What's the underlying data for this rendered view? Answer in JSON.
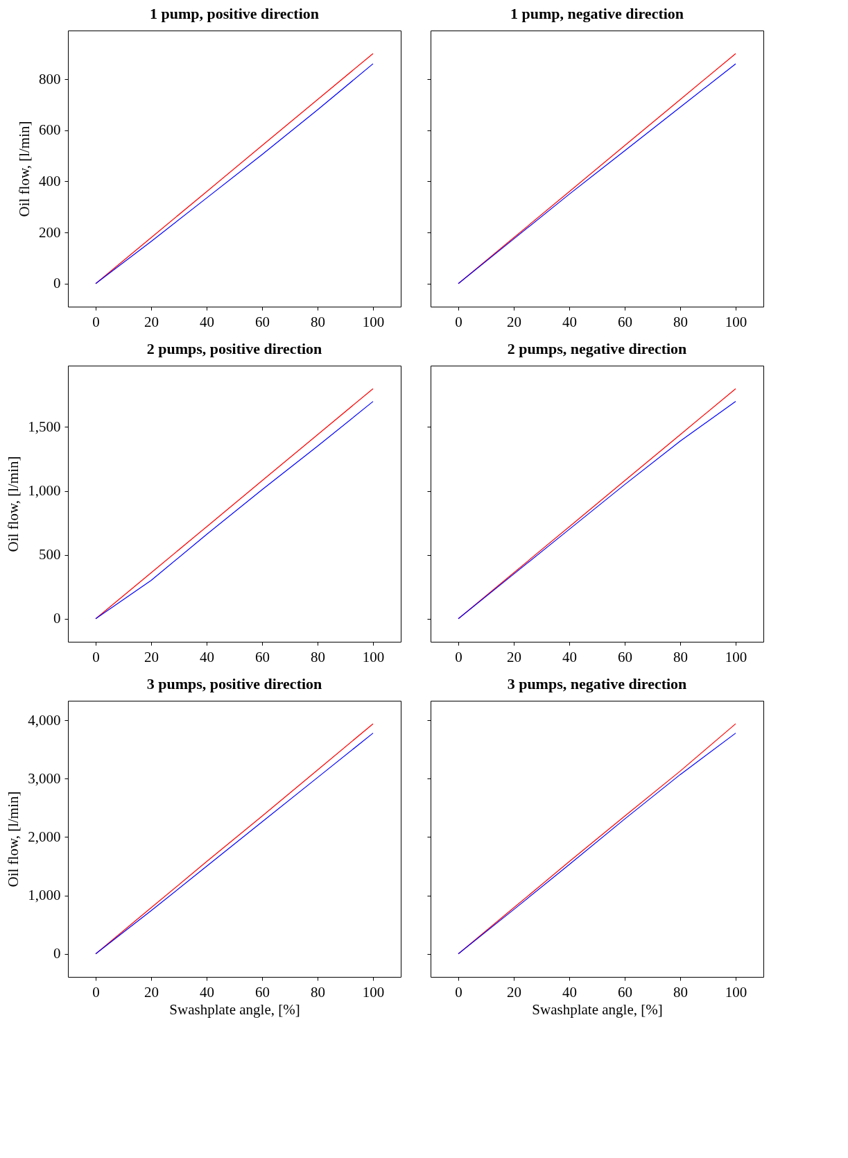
{
  "chart_data": [
    {
      "type": "line",
      "title": "1 pump, positive direction",
      "ylabel": "Oil flow, [l/min]",
      "x": [
        0,
        20,
        40,
        60,
        80,
        100
      ],
      "xlim": [
        -10,
        110
      ],
      "xticks": [
        0,
        20,
        40,
        60,
        80,
        100
      ],
      "ylim": [
        -90,
        990
      ],
      "yticks": [
        0,
        200,
        400,
        600,
        800
      ],
      "grid": false,
      "marker": "none",
      "line_style": "solid",
      "series": [
        {
          "color": "#ff0000",
          "values": [
            0,
            180,
            360,
            540,
            720,
            900
          ]
        },
        {
          "color": "#0000ff",
          "values": [
            0,
            165,
            335,
            505,
            680,
            860
          ]
        }
      ]
    },
    {
      "type": "line",
      "title": "1 pump, negative direction",
      "x": [
        0,
        20,
        40,
        60,
        80,
        100
      ],
      "xlim": [
        -10,
        110
      ],
      "xticks": [
        0,
        20,
        40,
        60,
        80,
        100
      ],
      "ylim": [
        -90,
        990
      ],
      "yticks": [
        0,
        200,
        400,
        600,
        800
      ],
      "tick_labels": "x",
      "grid": false,
      "marker": "none",
      "line_style": "solid",
      "series": [
        {
          "color": "#ff0000",
          "values": [
            0,
            180,
            360,
            540,
            720,
            900
          ]
        },
        {
          "color": "#0000ff",
          "values": [
            0,
            175,
            350,
            520,
            690,
            860
          ]
        }
      ]
    },
    {
      "type": "line",
      "title": "2 pumps, positive direction",
      "ylabel": "Oil flow, [l/min]",
      "x": [
        0,
        20,
        40,
        60,
        80,
        100
      ],
      "xlim": [
        -10,
        110
      ],
      "xticks": [
        0,
        20,
        40,
        60,
        80,
        100
      ],
      "ylim": [
        -180,
        1980
      ],
      "yticks": [
        0,
        500,
        {
          "value": 1000,
          "label": "1,000"
        },
        {
          "value": 1500,
          "label": "1,500"
        }
      ],
      "grid": false,
      "marker": "none",
      "line_style": "solid",
      "series": [
        {
          "color": "#ff0000",
          "values": [
            0,
            360,
            720,
            1080,
            1440,
            1800
          ]
        },
        {
          "color": "#0000ff",
          "values": [
            0,
            300,
            660,
            1010,
            1350,
            1700
          ]
        }
      ]
    },
    {
      "type": "line",
      "title": "2 pumps, negative direction",
      "x": [
        0,
        20,
        40,
        60,
        80,
        100
      ],
      "xlim": [
        -10,
        110
      ],
      "xticks": [
        0,
        20,
        40,
        60,
        80,
        100
      ],
      "ylim": [
        -180,
        1980
      ],
      "yticks": [
        0,
        500,
        1000,
        1500
      ],
      "tick_labels": "x",
      "grid": false,
      "marker": "none",
      "line_style": "solid",
      "series": [
        {
          "color": "#ff0000",
          "values": [
            0,
            360,
            720,
            1080,
            1440,
            1800
          ]
        },
        {
          "color": "#0000ff",
          "values": [
            0,
            350,
            700,
            1050,
            1390,
            1700
          ]
        }
      ]
    },
    {
      "type": "line",
      "title": "3 pumps, positive direction",
      "xlabel": "Swashplate angle, [%]",
      "ylabel": "Oil flow, [l/min]",
      "x": [
        0,
        20,
        40,
        60,
        80,
        100
      ],
      "xlim": [
        -10,
        110
      ],
      "xticks": [
        0,
        20,
        40,
        60,
        80,
        100
      ],
      "ylim": [
        -394,
        4334
      ],
      "yticks": [
        0,
        {
          "value": 1000,
          "label": "1,000"
        },
        {
          "value": 2000,
          "label": "2,000"
        },
        {
          "value": 3000,
          "label": "3,000"
        },
        {
          "value": 4000,
          "label": "4,000"
        }
      ],
      "grid": false,
      "marker": "none",
      "line_style": "solid",
      "series": [
        {
          "color": "#ff0000",
          "values": [
            0,
            790,
            1580,
            2360,
            3150,
            3940
          ]
        },
        {
          "color": "#0000ff",
          "values": [
            0,
            740,
            1500,
            2260,
            3020,
            3780
          ]
        }
      ]
    },
    {
      "type": "line",
      "title": "3 pumps, negative direction",
      "xlabel": "Swashplate angle, [%]",
      "x": [
        0,
        20,
        40,
        60,
        80,
        100
      ],
      "xlim": [
        -10,
        110
      ],
      "xticks": [
        0,
        20,
        40,
        60,
        80,
        100
      ],
      "ylim": [
        -394,
        4334
      ],
      "yticks": [
        0,
        1000,
        2000,
        3000,
        4000
      ],
      "tick_labels": "x",
      "grid": false,
      "marker": "none",
      "line_style": "solid",
      "series": [
        {
          "color": "#ff0000",
          "values": [
            0,
            790,
            1580,
            2360,
            3130,
            3940
          ]
        },
        {
          "color": "#0000ff",
          "values": [
            0,
            760,
            1530,
            2310,
            3070,
            3780
          ]
        }
      ]
    }
  ]
}
